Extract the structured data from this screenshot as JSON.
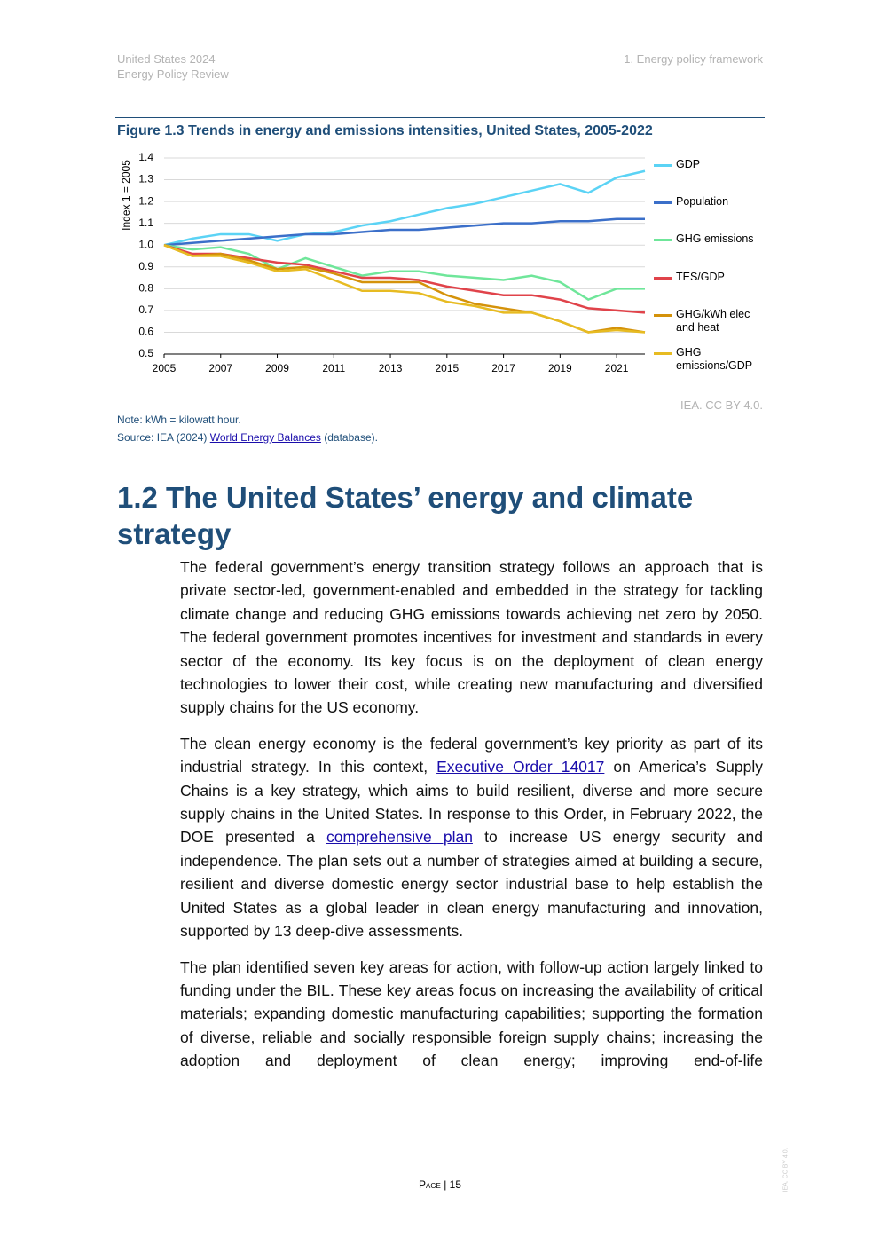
{
  "header": {
    "left": [
      "United States 2024",
      "Energy Policy Review"
    ],
    "right": "1. Energy policy framework"
  },
  "figure": {
    "title": "Figure 1.3 Trends in energy and emissions intensities, United States, 2005-2022",
    "credit": "IEA. CC BY 4.0.",
    "note": "Note: kWh = kilowatt hour.",
    "source": [
      "Source: IEA (2024) ",
      "World Energy Balances",
      " (database)."
    ]
  },
  "chart_data": {
    "type": "line",
    "y_label": "Index 1 = 2005",
    "x": [
      2005,
      2006,
      2007,
      2008,
      2009,
      2010,
      2011,
      2012,
      2013,
      2014,
      2015,
      2016,
      2017,
      2018,
      2019,
      2020,
      2021,
      2022
    ],
    "xlim": [
      2005,
      2022
    ],
    "xticks": [
      2005,
      2007,
      2009,
      2011,
      2013,
      2015,
      2017,
      2019,
      2021
    ],
    "ylim": [
      0.5,
      1.4
    ],
    "yticks": [
      0.5,
      0.6,
      0.7,
      0.8,
      0.9,
      {
        "value": 1,
        "label": "1.0"
      },
      1.1,
      1.2,
      1.3,
      1.4
    ],
    "grid": true,
    "series": [
      {
        "name": "GDP",
        "color": "#5bd3f5",
        "values": [
          1.0,
          1.03,
          1.05,
          1.05,
          1.02,
          1.05,
          1.06,
          1.09,
          1.11,
          1.14,
          1.17,
          1.19,
          1.22,
          1.25,
          1.28,
          1.24,
          1.31,
          1.34
        ]
      },
      {
        "name": "Population",
        "color": "#3b6fc9",
        "values": [
          1.0,
          1.01,
          1.02,
          1.03,
          1.04,
          1.05,
          1.05,
          1.06,
          1.07,
          1.07,
          1.08,
          1.09,
          1.1,
          1.1,
          1.11,
          1.11,
          1.12,
          1.12
        ]
      },
      {
        "name": "GHG emissions",
        "color": "#6fe69a",
        "values": [
          1.0,
          0.98,
          0.99,
          0.96,
          0.89,
          0.94,
          0.9,
          0.86,
          0.88,
          0.88,
          0.86,
          0.85,
          0.84,
          0.86,
          0.83,
          0.75,
          0.8,
          0.8
        ]
      },
      {
        "name": "TES/GDP",
        "color": "#e0434a",
        "values": [
          1.0,
          0.96,
          0.96,
          0.94,
          0.92,
          0.91,
          0.88,
          0.85,
          0.85,
          0.84,
          0.81,
          0.79,
          0.77,
          0.77,
          0.75,
          0.71,
          0.7,
          0.69
        ]
      },
      {
        "name": "GHG/kWh elec and heat",
        "color": "#d4920a",
        "values": [
          1.0,
          0.95,
          0.96,
          0.93,
          0.89,
          0.9,
          0.87,
          0.83,
          0.83,
          0.83,
          0.77,
          0.73,
          0.71,
          0.69,
          0.65,
          0.6,
          0.62,
          0.6
        ]
      },
      {
        "name": "GHG emissions/GDP",
        "color": "#e7bb22",
        "values": [
          1.0,
          0.95,
          0.95,
          0.92,
          0.88,
          0.89,
          0.84,
          0.79,
          0.79,
          0.78,
          0.74,
          0.72,
          0.69,
          0.69,
          0.65,
          0.6,
          0.61,
          0.6
        ]
      }
    ]
  },
  "section": {
    "heading": "1.2 The United States’ energy and climate strategy",
    "paragraphs": [
      [
        "The federal government’s energy transition strategy follows an approach that is private sector-led, government-enabled and embedded in the strategy for tackling climate change and reducing GHG emissions towards achieving net zero by 2050. The federal government promotes incentives for investment and standards in every sector of the economy. Its key focus is on the deployment of clean energy technologies to lower their cost, while creating new manufacturing and diversified supply chains for the US economy."
      ],
      [
        "The clean energy economy is the federal government’s key priority as part of its industrial strategy. In this context, ",
        "Executive Order 14017",
        " on America’s Supply Chains is a key strategy, which aims to build resilient, diverse and more secure supply chains in the United States. In response to this Order, in February 2022, the DOE presented a ",
        "comprehensive plan",
        " to increase US energy security and independence. The plan sets out a number of strategies aimed at building a secure, resilient and diverse domestic energy sector industrial base to help establish the United States as a global leader in clean energy manufacturing and innovation, supported by 13 deep-dive assessments."
      ],
      [
        "The plan identified seven key areas for action, with follow-up action largely linked to funding under the BIL. These key areas focus on increasing the availability of critical materials; expanding domestic manufacturing capabilities; supporting the formation of diverse, reliable and socially responsible foreign supply chains; increasing the adoption and deployment of clean energy; improving end-of-life"
      ]
    ]
  },
  "footer": {
    "page": "Page | 15",
    "side": "IEA. CC BY 4.0."
  }
}
